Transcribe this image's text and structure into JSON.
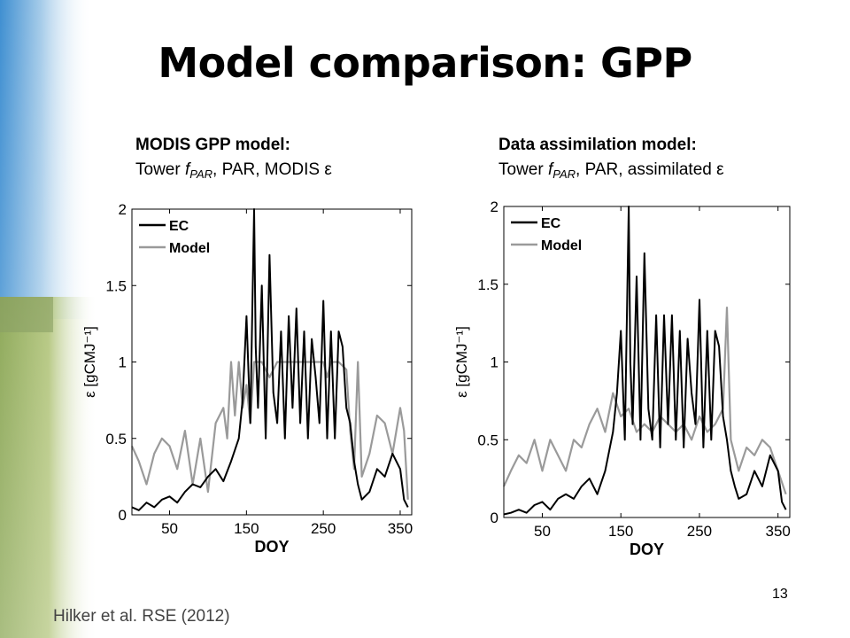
{
  "slide": {
    "title": "Model comparison: GPP",
    "page_number": "13",
    "citation": "Hilker et al. RSE (2012)"
  },
  "panels": [
    {
      "heading": "MODIS GPP model:",
      "subtitle_prefix": "Tower ",
      "subtitle_f": "f",
      "subtitle_sub": "PAR",
      "subtitle_suffix": ", PAR, MODIS ε"
    },
    {
      "heading": "Data assimilation model:",
      "subtitle_prefix": "Tower ",
      "subtitle_f": "f",
      "subtitle_sub": "PAR",
      "subtitle_suffix": ", PAR, assimilated ε"
    }
  ],
  "colors": {
    "ec": "#000000",
    "model": "#9a9a9a",
    "axis": "#000000",
    "grid": "#d9d9d9"
  },
  "chart_data": [
    {
      "type": "line",
      "xlabel": "DOY",
      "ylabel": "ε [gCMJ⁻¹]",
      "xlim": [
        1,
        365
      ],
      "ylim": [
        0,
        2
      ],
      "xticks": [
        50,
        150,
        250,
        350
      ],
      "yticks": [
        0,
        0.5,
        1,
        1.5,
        2
      ],
      "ytick_labels": [
        "0",
        "0.5",
        "1",
        "1.5",
        "2"
      ],
      "grid": false,
      "legend": "top-left",
      "series": [
        {
          "name": "EC",
          "key": "ec",
          "x": [
            1,
            10,
            20,
            30,
            40,
            50,
            60,
            70,
            80,
            90,
            100,
            110,
            120,
            130,
            140,
            145,
            150,
            155,
            160,
            162,
            165,
            170,
            175,
            180,
            185,
            190,
            195,
            200,
            205,
            210,
            215,
            220,
            225,
            230,
            235,
            240,
            245,
            250,
            255,
            260,
            265,
            270,
            275,
            280,
            285,
            290,
            295,
            300,
            310,
            320,
            330,
            340,
            350,
            355,
            360
          ],
          "y": [
            0.05,
            0.03,
            0.08,
            0.05,
            0.1,
            0.12,
            0.08,
            0.15,
            0.2,
            0.18,
            0.25,
            0.3,
            0.22,
            0.35,
            0.5,
            0.75,
            1.3,
            0.6,
            2.0,
            1.1,
            0.7,
            1.5,
            0.5,
            1.7,
            0.8,
            0.6,
            1.2,
            0.5,
            1.3,
            0.7,
            1.35,
            0.6,
            1.2,
            0.5,
            1.15,
            0.9,
            0.6,
            1.4,
            0.5,
            1.2,
            0.5,
            1.2,
            1.1,
            0.7,
            0.6,
            0.35,
            0.2,
            0.1,
            0.15,
            0.3,
            0.25,
            0.4,
            0.3,
            0.1,
            0.05
          ]
        },
        {
          "name": "Model",
          "key": "model",
          "x": [
            1,
            10,
            20,
            30,
            40,
            50,
            60,
            70,
            80,
            90,
            100,
            110,
            120,
            125,
            130,
            135,
            140,
            145,
            150,
            155,
            160,
            170,
            180,
            190,
            200,
            210,
            220,
            230,
            240,
            250,
            255,
            260,
            270,
            280,
            285,
            290,
            295,
            300,
            310,
            320,
            330,
            340,
            350,
            355,
            360
          ],
          "y": [
            0.45,
            0.35,
            0.2,
            0.4,
            0.5,
            0.45,
            0.3,
            0.55,
            0.2,
            0.5,
            0.15,
            0.6,
            0.7,
            0.5,
            1.0,
            0.65,
            1.0,
            0.7,
            0.85,
            0.6,
            1.0,
            1.0,
            0.9,
            1.0,
            1.0,
            1.0,
            1.0,
            1.0,
            1.0,
            1.0,
            0.9,
            1.0,
            1.0,
            0.95,
            0.55,
            0.3,
            1.0,
            0.25,
            0.4,
            0.65,
            0.6,
            0.4,
            0.7,
            0.55,
            0.1
          ]
        }
      ]
    },
    {
      "type": "line",
      "xlabel": "DOY",
      "ylabel": "ε [gCMJ⁻¹]",
      "xlim": [
        1,
        365
      ],
      "ylim": [
        0,
        2
      ],
      "xticks": [
        50,
        150,
        250,
        350
      ],
      "yticks": [
        0,
        0.5,
        1,
        1.5,
        2
      ],
      "ytick_labels": [
        "0",
        "0.5",
        "1",
        "1.5",
        "2"
      ],
      "grid": false,
      "legend": "top-left",
      "series": [
        {
          "name": "EC",
          "key": "ec",
          "x": [
            1,
            10,
            20,
            30,
            40,
            50,
            60,
            70,
            80,
            90,
            100,
            110,
            120,
            130,
            140,
            145,
            150,
            155,
            160,
            162,
            165,
            170,
            175,
            180,
            185,
            190,
            195,
            200,
            205,
            210,
            215,
            220,
            225,
            230,
            235,
            240,
            245,
            250,
            255,
            260,
            265,
            270,
            275,
            280,
            285,
            290,
            295,
            300,
            310,
            320,
            330,
            340,
            350,
            355,
            360
          ],
          "y": [
            0.02,
            0.03,
            0.05,
            0.03,
            0.08,
            0.1,
            0.05,
            0.12,
            0.15,
            0.12,
            0.2,
            0.25,
            0.15,
            0.3,
            0.55,
            0.8,
            1.2,
            0.5,
            2.0,
            1.0,
            0.6,
            1.55,
            0.5,
            1.7,
            0.7,
            0.5,
            1.3,
            0.45,
            1.3,
            0.6,
            1.3,
            0.5,
            1.2,
            0.45,
            1.15,
            0.8,
            0.6,
            1.4,
            0.45,
            1.2,
            0.5,
            1.2,
            1.1,
            0.65,
            0.5,
            0.3,
            0.2,
            0.12,
            0.15,
            0.3,
            0.2,
            0.4,
            0.3,
            0.1,
            0.05
          ]
        },
        {
          "name": "Model",
          "key": "model",
          "x": [
            1,
            10,
            20,
            30,
            40,
            50,
            60,
            70,
            80,
            90,
            100,
            110,
            120,
            130,
            140,
            150,
            160,
            170,
            180,
            190,
            200,
            210,
            220,
            230,
            240,
            250,
            260,
            270,
            280,
            285,
            290,
            300,
            310,
            320,
            330,
            340,
            350,
            360
          ],
          "y": [
            0.2,
            0.3,
            0.4,
            0.35,
            0.5,
            0.3,
            0.5,
            0.4,
            0.3,
            0.5,
            0.45,
            0.6,
            0.7,
            0.55,
            0.8,
            0.65,
            0.7,
            0.55,
            0.6,
            0.55,
            0.65,
            0.6,
            0.55,
            0.6,
            0.5,
            0.65,
            0.55,
            0.6,
            0.7,
            1.35,
            0.5,
            0.3,
            0.45,
            0.4,
            0.5,
            0.45,
            0.3,
            0.15
          ]
        }
      ]
    }
  ]
}
